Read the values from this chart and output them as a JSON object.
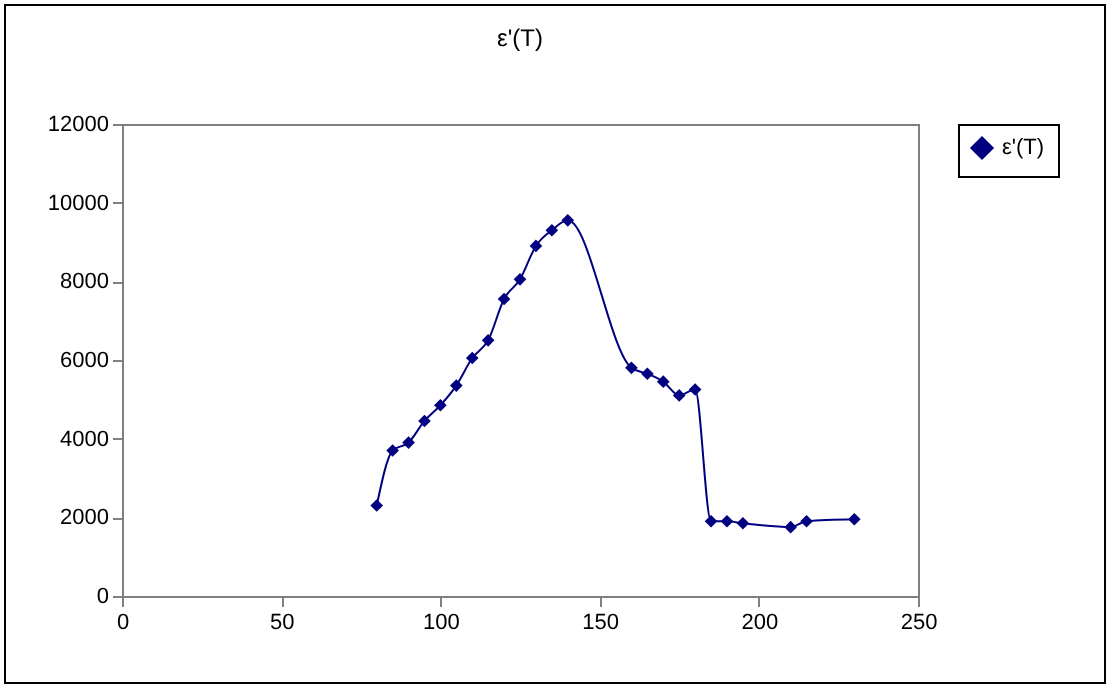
{
  "chart_data": {
    "type": "line",
    "title": "ε'(T)",
    "x": [
      80,
      85,
      90,
      95,
      100,
      105,
      110,
      115,
      120,
      125,
      130,
      135,
      140,
      160,
      165,
      170,
      175,
      180,
      185,
      190,
      195,
      210,
      215,
      230
    ],
    "series": [
      {
        "name": "ε'(T)",
        "color": "#000080",
        "values": [
          2300,
          3700,
          3900,
          4450,
          4850,
          5350,
          6050,
          6500,
          7550,
          8050,
          8900,
          9300,
          9550,
          5800,
          5650,
          5450,
          5100,
          5250,
          1900,
          1900,
          1850,
          1750,
          1900,
          1950
        ]
      }
    ],
    "xlim": [
      0,
      250
    ],
    "xticks": [
      0,
      50,
      100,
      150,
      200,
      250
    ],
    "ylim": [
      0,
      12000
    ],
    "yticks": [
      0,
      2000,
      4000,
      6000,
      8000,
      10000,
      12000
    ],
    "grid": false,
    "legend": "right",
    "marker": "diamond",
    "line_style": "solid"
  }
}
